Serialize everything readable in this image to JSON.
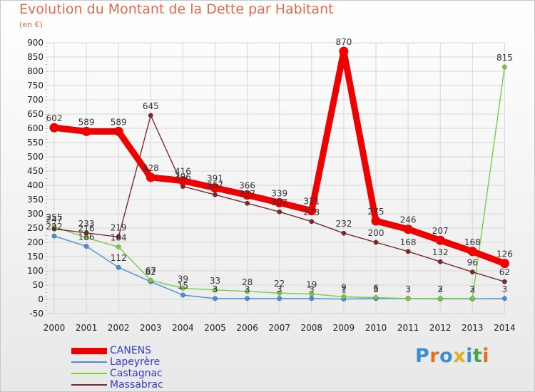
{
  "title": "Evolution du Montant de la Dette par Habitant",
  "subtitle": "(en €)",
  "brand": "Proxiti",
  "chart_data": {
    "type": "line",
    "title": "Evolution du Montant de la Dette par Habitant",
    "ylabel": "(en €)",
    "xlabel": "",
    "ylim": [
      -50,
      900
    ],
    "yticks": [
      -50,
      0,
      50,
      100,
      150,
      200,
      250,
      300,
      350,
      400,
      450,
      500,
      550,
      600,
      650,
      700,
      750,
      800,
      850,
      900
    ],
    "categories": [
      "2000",
      "2001",
      "2002",
      "2003",
      "2004",
      "2005",
      "2006",
      "2007",
      "2008",
      "2009",
      "2010",
      "2011",
      "2012",
      "2013",
      "2014"
    ],
    "grid": true,
    "series": [
      {
        "name": "CANENS",
        "color": "#ee0000",
        "values": [
          602,
          589,
          589,
          428,
          416,
          391,
          366,
          339,
          311,
          870,
          275,
          246,
          207,
          168,
          126
        ]
      },
      {
        "name": "Lapeyrère",
        "color": "#4a90d9",
        "values": [
          222,
          186,
          112,
          62,
          15,
          3,
          3,
          3,
          3,
          1,
          3,
          3,
          2,
          2,
          3
        ]
      },
      {
        "name": "Castagnac",
        "color": "#77cc44",
        "values": [
          255,
          216,
          184,
          67,
          39,
          33,
          28,
          22,
          19,
          9,
          6,
          3,
          3,
          3,
          815
        ]
      },
      {
        "name": "Massabrac",
        "color": "#7a2a2a",
        "values": [
          247,
          233,
          219,
          645,
          396,
          367,
          337,
          307,
          273,
          232,
          200,
          168,
          132,
          96,
          62
        ]
      }
    ]
  }
}
